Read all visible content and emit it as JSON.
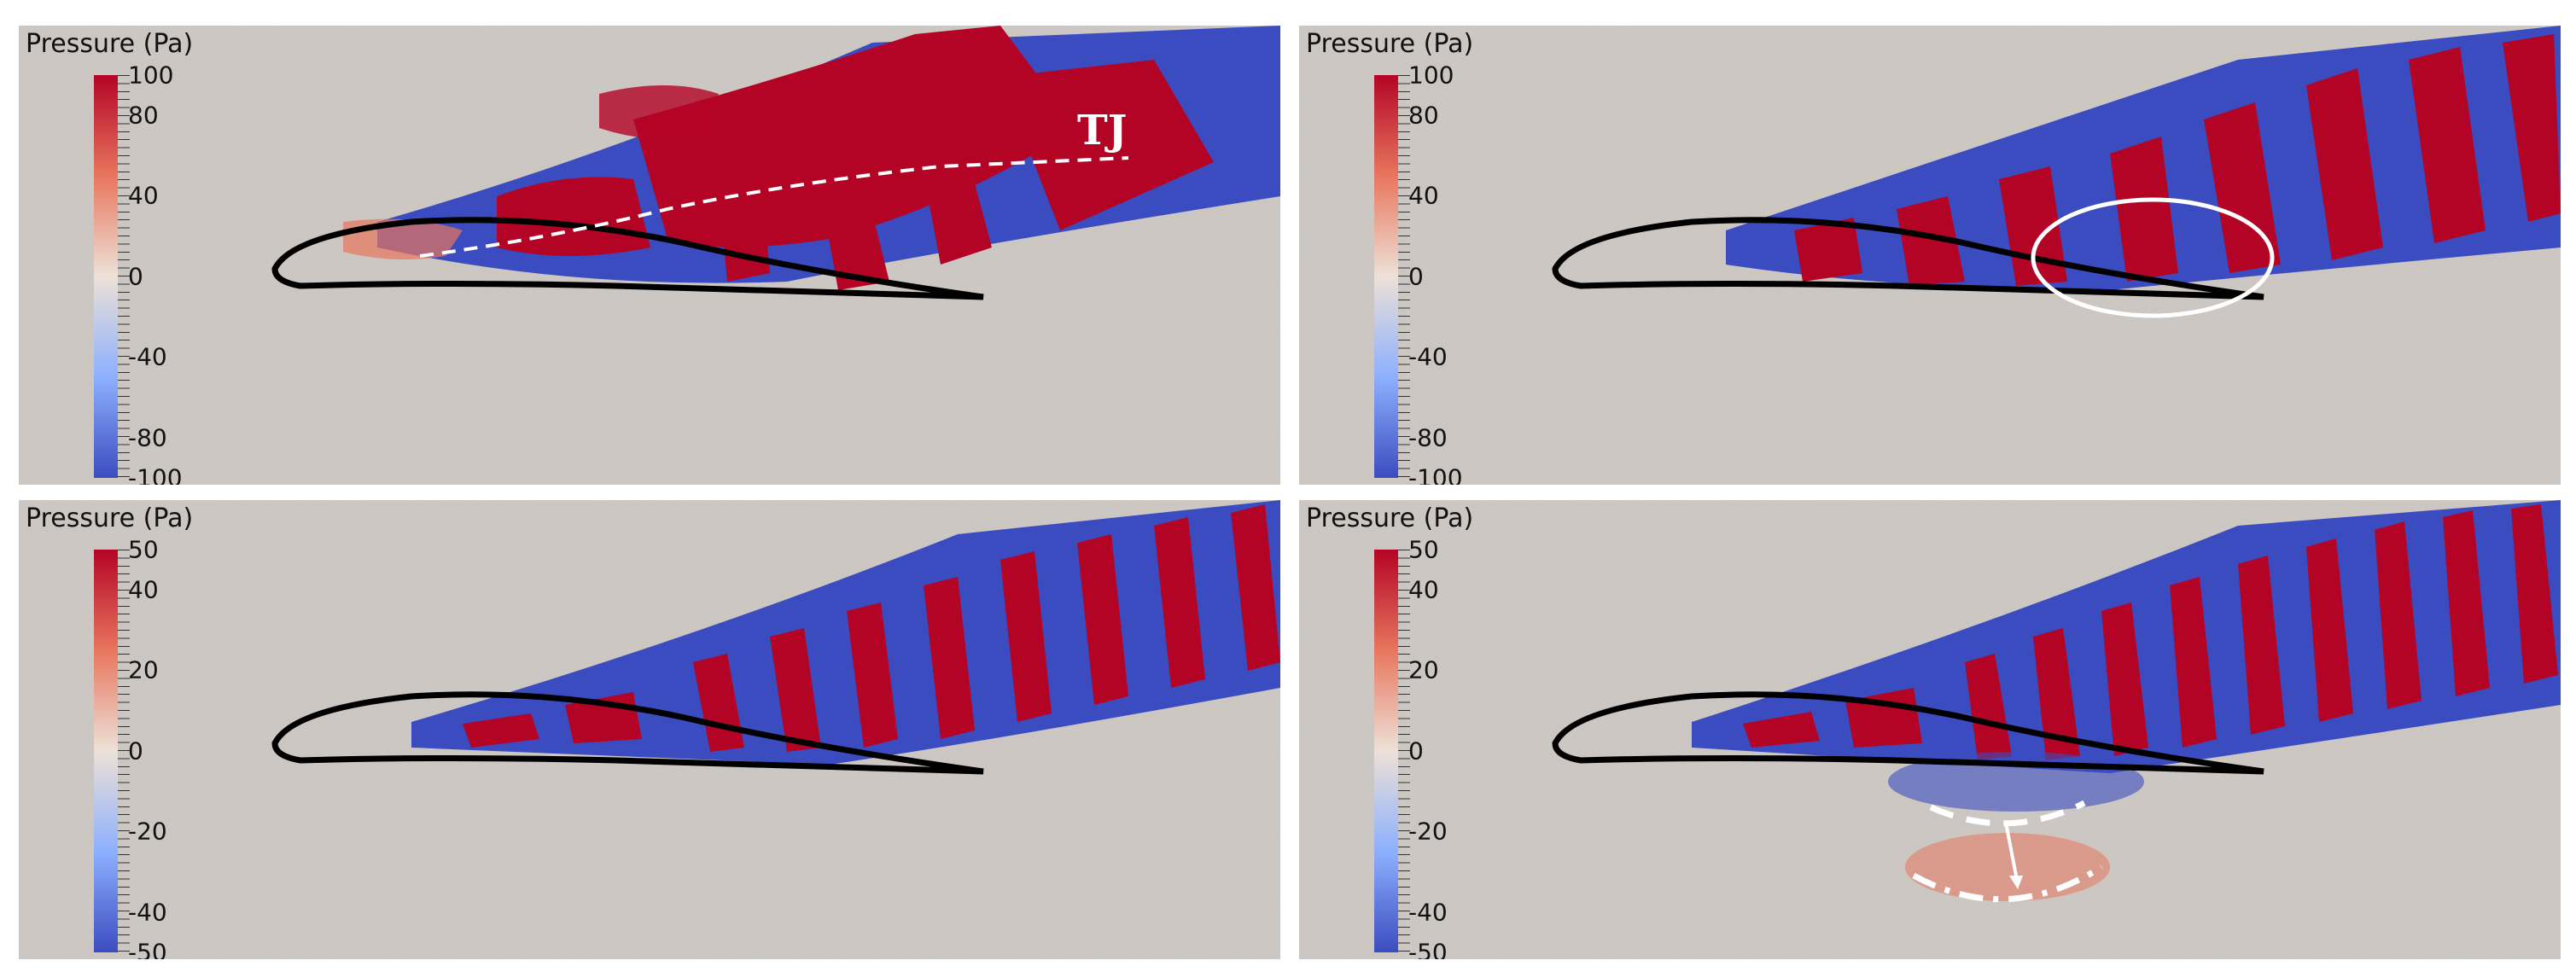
{
  "panels": [
    {
      "id": "top-left",
      "colorbar": {
        "title": "Pressure (Pa)",
        "ticks": [
          "100",
          "80",
          "40",
          "0",
          "-40",
          "-80",
          "-100"
        ]
      },
      "annotation_text": "TJ"
    },
    {
      "id": "top-right",
      "colorbar": {
        "title": "Pressure (Pa)",
        "ticks": [
          "100",
          "80",
          "40",
          "0",
          "-40",
          "-80",
          "-100"
        ]
      }
    },
    {
      "id": "bottom-left",
      "colorbar": {
        "title": "Pressure (Pa)",
        "ticks": [
          "50",
          "40",
          "20",
          "0",
          "-20",
          "-40",
          "-50"
        ]
      }
    },
    {
      "id": "bottom-right",
      "colorbar": {
        "title": "Pressure (Pa)",
        "ticks": [
          "50",
          "40",
          "20",
          "0",
          "-20",
          "-40",
          "-50"
        ]
      }
    }
  ],
  "colors": {
    "positive": "#b40426",
    "negative": "#3b4cc0",
    "neutral": "#c9c4bf",
    "airfoil": "#000000",
    "annotation": "#ffffff"
  }
}
